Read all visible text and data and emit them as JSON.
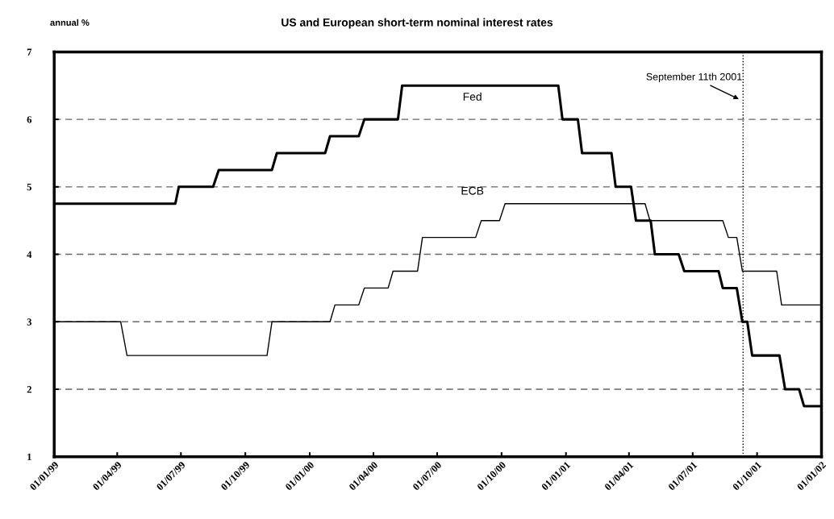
{
  "chart_data": {
    "type": "line",
    "title": "US and European short-term nominal interest rates",
    "ylabel": "annual %",
    "series": [
      {
        "name": "Fed",
        "color": "#000000",
        "x": [
          "1999-01-01",
          "1999-06-23",
          "1999-06-28",
          "1999-08-16",
          "1999-08-24",
          "1999-11-08",
          "1999-11-15",
          "2000-01-23",
          "2000-01-30",
          "2000-03-11",
          "2000-03-19",
          "2000-05-06",
          "2000-05-12",
          "2000-12-21",
          "2000-12-27",
          "2001-01-18",
          "2001-01-24",
          "2001-03-07",
          "2001-03-13",
          "2001-04-04",
          "2001-04-11",
          "2001-05-02",
          "2001-05-08",
          "2001-06-11",
          "2001-06-19",
          "2001-08-07",
          "2001-08-13",
          "2001-09-02",
          "2001-09-10",
          "2001-09-17",
          "2001-09-24",
          "2001-11-02",
          "2001-11-10",
          "2001-11-30",
          "2001-12-07",
          "2002-01-01"
        ],
        "values": [
          4.75,
          4.75,
          5.0,
          5.0,
          5.25,
          5.25,
          5.5,
          5.5,
          5.75,
          5.75,
          6.0,
          6.0,
          6.5,
          6.5,
          6.0,
          6.0,
          5.5,
          5.5,
          5.0,
          5.0,
          4.5,
          4.5,
          4.0,
          4.0,
          3.75,
          3.75,
          3.5,
          3.5,
          3.0,
          3.0,
          2.5,
          2.5,
          2.0,
          2.0,
          1.75,
          1.75
        ]
      },
      {
        "name": "ECB",
        "color": "#000000",
        "x": [
          "1999-01-01",
          "1999-04-06",
          "1999-04-15",
          "1999-11-01",
          "1999-11-08",
          "2000-01-30",
          "2000-02-06",
          "2000-03-11",
          "2000-03-19",
          "2000-04-22",
          "2000-04-29",
          "2000-06-03",
          "2000-06-10",
          "2000-08-25",
          "2000-09-02",
          "2000-09-28",
          "2000-10-06",
          "2001-04-24",
          "2001-05-01",
          "2001-08-13",
          "2001-08-21",
          "2001-09-02",
          "2001-09-10",
          "2001-10-29",
          "2001-11-05",
          "2002-01-01"
        ],
        "values": [
          3.0,
          3.0,
          2.5,
          2.5,
          3.0,
          3.0,
          3.25,
          3.25,
          3.5,
          3.5,
          3.75,
          3.75,
          4.25,
          4.25,
          4.5,
          4.5,
          4.75,
          4.75,
          4.5,
          4.5,
          4.25,
          4.25,
          3.75,
          3.75,
          3.25,
          3.25
        ]
      }
    ],
    "xlim": [
      "1999-01-01",
      "2002-01-01"
    ],
    "xticks": [
      {
        "value": "1999-01-01",
        "label": "01/01/99"
      },
      {
        "value": "1999-04-01",
        "label": "01/04/99"
      },
      {
        "value": "1999-07-01",
        "label": "01/07/99"
      },
      {
        "value": "1999-10-01",
        "label": "01/10/99"
      },
      {
        "value": "2000-01-01",
        "label": "01/01/00"
      },
      {
        "value": "2000-04-01",
        "label": "01/04/00"
      },
      {
        "value": "2000-07-01",
        "label": "01/07/00"
      },
      {
        "value": "2000-10-01",
        "label": "01/10/00"
      },
      {
        "value": "2001-01-01",
        "label": "01/01/01"
      },
      {
        "value": "2001-04-01",
        "label": "01/04/01"
      },
      {
        "value": "2001-07-01",
        "label": "01/07/01"
      },
      {
        "value": "2001-10-01",
        "label": "01/10/01"
      },
      {
        "value": "2002-01-01",
        "label": "01/01/02"
      }
    ],
    "ylim": [
      1,
      7
    ],
    "yticks": [
      1,
      2,
      3,
      4,
      5,
      6,
      7
    ],
    "grid": "y",
    "line_style": "solid",
    "marker": "none",
    "legend": false,
    "ref_lines": [
      {
        "axis": "x",
        "value": "2001-09-11",
        "label": "September 11th 2001",
        "color": "#000000",
        "line_style": "dotted"
      }
    ]
  }
}
